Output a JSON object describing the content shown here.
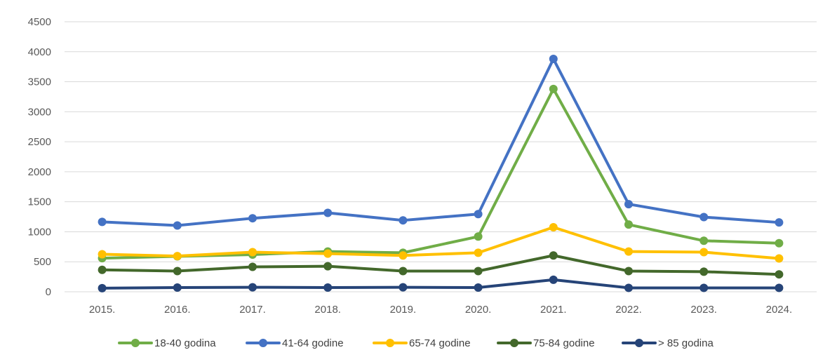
{
  "chart_data": {
    "type": "line",
    "title": "",
    "xlabel": "",
    "ylabel": "",
    "categories": [
      "2015.",
      "2016.",
      "2017.",
      "2018.",
      "2019.",
      "2020.",
      "2021.",
      "2022.",
      "2023.",
      "2024."
    ],
    "ylim": [
      0,
      4500
    ],
    "yticks": [
      0,
      500,
      1000,
      1500,
      2000,
      2500,
      3000,
      3500,
      4000,
      4500
    ],
    "grid": true,
    "legend_position": "bottom",
    "series": [
      {
        "name": "18-40 godina",
        "color": "#70ad47",
        "values": [
          560,
          590,
          620,
          670,
          650,
          920,
          3380,
          1120,
          850,
          810
        ]
      },
      {
        "name": "41-64 godine",
        "color": "#4472c4",
        "values": [
          1165,
          1105,
          1225,
          1315,
          1190,
          1295,
          3880,
          1460,
          1245,
          1155
        ]
      },
      {
        "name": "65-74 godine",
        "color": "#ffc000",
        "values": [
          625,
          595,
          660,
          635,
          605,
          650,
          1075,
          670,
          660,
          555
        ]
      },
      {
        "name": "75-84 godine",
        "color": "#43682b",
        "values": [
          365,
          345,
          415,
          425,
          345,
          345,
          605,
          345,
          335,
          290
        ]
      },
      {
        "name": "> 85 godina",
        "color": "#264478",
        "values": [
          60,
          70,
          75,
          70,
          75,
          70,
          200,
          65,
          65,
          65
        ]
      }
    ]
  }
}
